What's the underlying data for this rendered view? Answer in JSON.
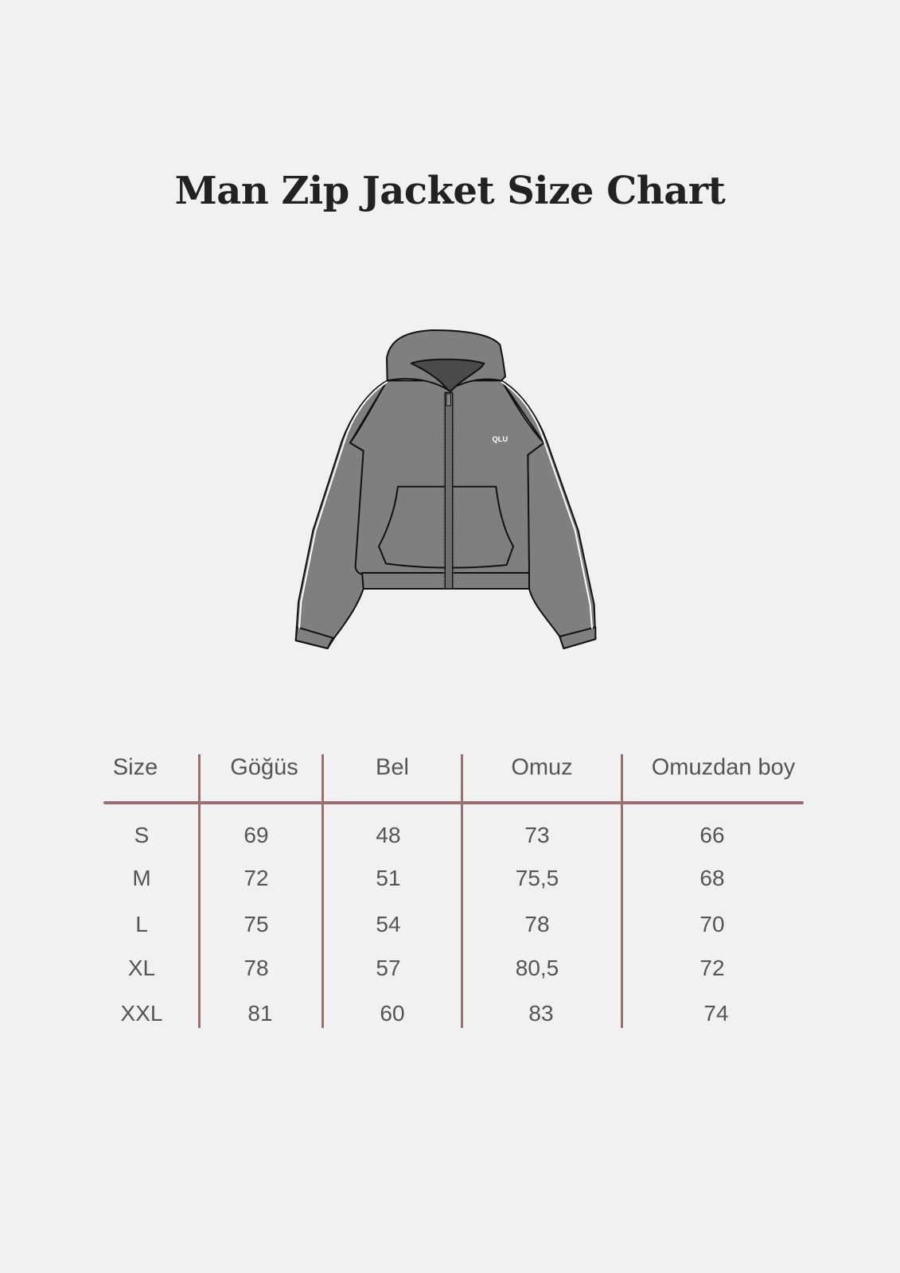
{
  "title": "Man Zip Jacket Size Chart",
  "image": {
    "logo_text": "QLU",
    "fill_color": "#7f807e",
    "hood_inner_color": "#4a4a4a"
  },
  "table": {
    "headers": [
      "Size",
      "Göğüs",
      "Bel",
      "Omuz",
      "Omuzdan boy"
    ],
    "rows": [
      [
        "S",
        "69",
        "48",
        "73",
        "66"
      ],
      [
        "M",
        "72",
        "51",
        "75,5",
        "68"
      ],
      [
        "L",
        "75",
        "54",
        "78",
        "70"
      ],
      [
        "XL",
        "78",
        "57",
        "80,5",
        "72"
      ],
      [
        "XXL",
        "81",
        "60",
        "83",
        "74"
      ]
    ],
    "line_color": "#9a6f71"
  }
}
